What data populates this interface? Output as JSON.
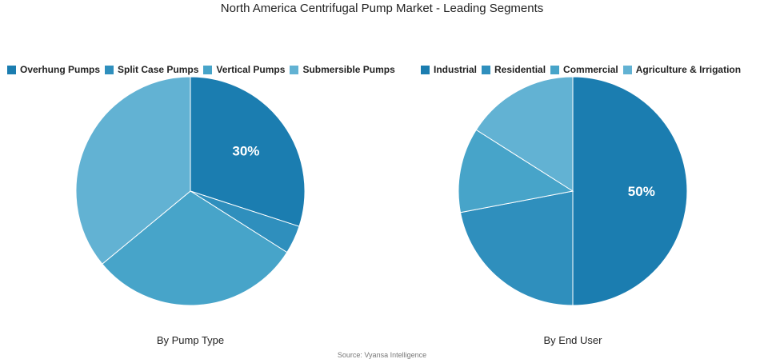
{
  "title": "North America Centrifugal Pump Market - Leading Segments",
  "source": "Source: Vyansa Intelligence",
  "chart_data": [
    {
      "type": "pie",
      "subtitle": "By Pump Type",
      "categories": [
        "Overhung Pumps",
        "Split Case Pumps",
        "Vertical Pumps",
        "Submersible Pumps"
      ],
      "values": [
        30,
        4,
        30,
        36
      ],
      "colors": [
        "#1b7db0",
        "#2f8fbd",
        "#47a4c9",
        "#62b2d3"
      ],
      "data_labels": [
        "30%",
        "",
        "",
        ""
      ],
      "legend": "top"
    },
    {
      "type": "pie",
      "subtitle": "By End User",
      "categories": [
        "Industrial",
        "Residential",
        "Commercial",
        "Agriculture & Irrigation"
      ],
      "values": [
        50,
        22,
        12,
        16
      ],
      "colors": [
        "#1b7db0",
        "#2f8fbd",
        "#47a4c9",
        "#62b2d3"
      ],
      "data_labels": [
        "50%",
        "",
        "",
        ""
      ],
      "legend": "top"
    }
  ]
}
